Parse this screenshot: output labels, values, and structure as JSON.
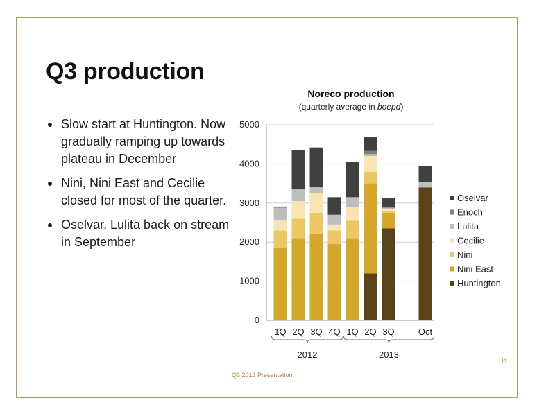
{
  "slide": {
    "title": "Q3 production",
    "bullets": [
      "Slow start at Huntington. Now gradually ramping up towards plateau in December",
      "Nini, Nini East and Cecilie closed for most of the quarter.",
      "Oselvar, Lulita back on stream in September"
    ],
    "footer": "Q3 2013 Presentation",
    "page_number": "11"
  },
  "chart_data": {
    "type": "bar",
    "stacked": true,
    "title": "Noreco production",
    "subtitle_prefix": "(quarterly average in ",
    "subtitle_unit": "boepd",
    "subtitle_suffix": ")",
    "categories": [
      "1Q",
      "2Q",
      "3Q",
      "4Q",
      "1Q",
      "2Q",
      "3Q",
      "Oct"
    ],
    "groups": [
      {
        "label": "2012",
        "categories": [
          "1Q",
          "2Q",
          "3Q",
          "4Q"
        ]
      },
      {
        "label": "2013",
        "categories": [
          "1Q",
          "2Q",
          "3Q",
          "Oct"
        ]
      }
    ],
    "ylim": [
      0,
      5000
    ],
    "yticks": [
      0,
      1000,
      2000,
      3000,
      4000,
      5000
    ],
    "ytick_labels": [
      "0",
      "1000",
      "2000",
      "3000",
      "4000",
      "5000"
    ],
    "grid": true,
    "legend_position": "right",
    "series": [
      {
        "name": "Huntington",
        "color": "#5a4318",
        "values": [
          0,
          0,
          0,
          0,
          0,
          1200,
          2350,
          3400
        ]
      },
      {
        "name": "Nini East",
        "color": "#d4a62a",
        "values": [
          1850,
          2100,
          2200,
          1950,
          2100,
          2300,
          400,
          0
        ]
      },
      {
        "name": "Nini",
        "color": "#ecc763",
        "values": [
          450,
          500,
          550,
          350,
          450,
          300,
          50,
          0
        ]
      },
      {
        "name": "Cecilie",
        "color": "#f7e6b3",
        "values": [
          250,
          450,
          500,
          150,
          350,
          400,
          50,
          0
        ]
      },
      {
        "name": "Lulita",
        "color": "#bdbdbd",
        "values": [
          330,
          300,
          150,
          250,
          250,
          50,
          30,
          130
        ]
      },
      {
        "name": "Enoch",
        "color": "#7f7f7f",
        "values": [
          30,
          0,
          20,
          0,
          0,
          80,
          20,
          0
        ]
      },
      {
        "name": "Oselvar",
        "color": "#404040",
        "values": [
          0,
          1000,
          1000,
          450,
          900,
          350,
          220,
          420
        ]
      }
    ]
  }
}
